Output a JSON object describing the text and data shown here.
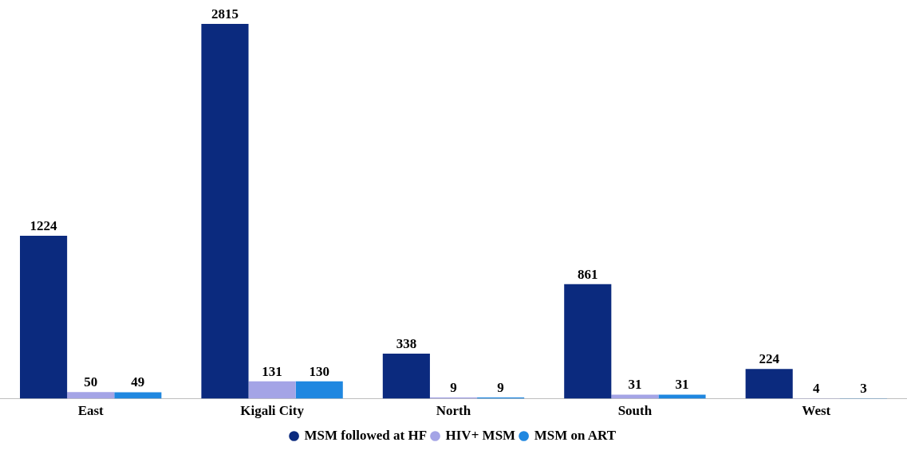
{
  "chart_data": {
    "type": "bar",
    "categories": [
      "East",
      "Kigali City",
      "North",
      "South",
      "West"
    ],
    "series": [
      {
        "name": "MSM followed at HF",
        "color": "#0b2a7e",
        "values": [
          1224,
          2815,
          338,
          861,
          224
        ]
      },
      {
        "name": "HIV+ MSM",
        "color": "#a4a4e6",
        "values": [
          50,
          131,
          9,
          31,
          4
        ]
      },
      {
        "name": "MSM on ART",
        "color": "#1f87e0",
        "values": [
          49,
          130,
          9,
          31,
          3
        ]
      }
    ],
    "data_labels": true,
    "grid": false,
    "legend": "bottom"
  }
}
